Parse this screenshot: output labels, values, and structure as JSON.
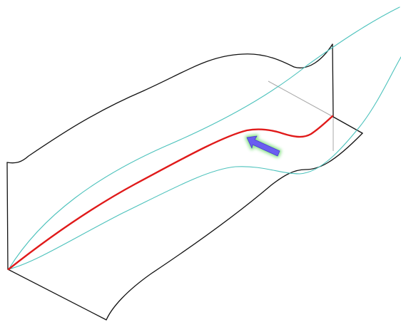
{
  "viewport": {
    "background": "#ffffff"
  },
  "colors": {
    "frame": "#111111",
    "guide_line": "#a8a8a8",
    "guide_curve": "#4cc2bc",
    "highlighted_curve": "#e01a1a",
    "arrow_fill": "#6a5df0",
    "arrow_glow": "#7ae07a"
  },
  "icons": {
    "pointer": "arrow-pointer-icon"
  }
}
